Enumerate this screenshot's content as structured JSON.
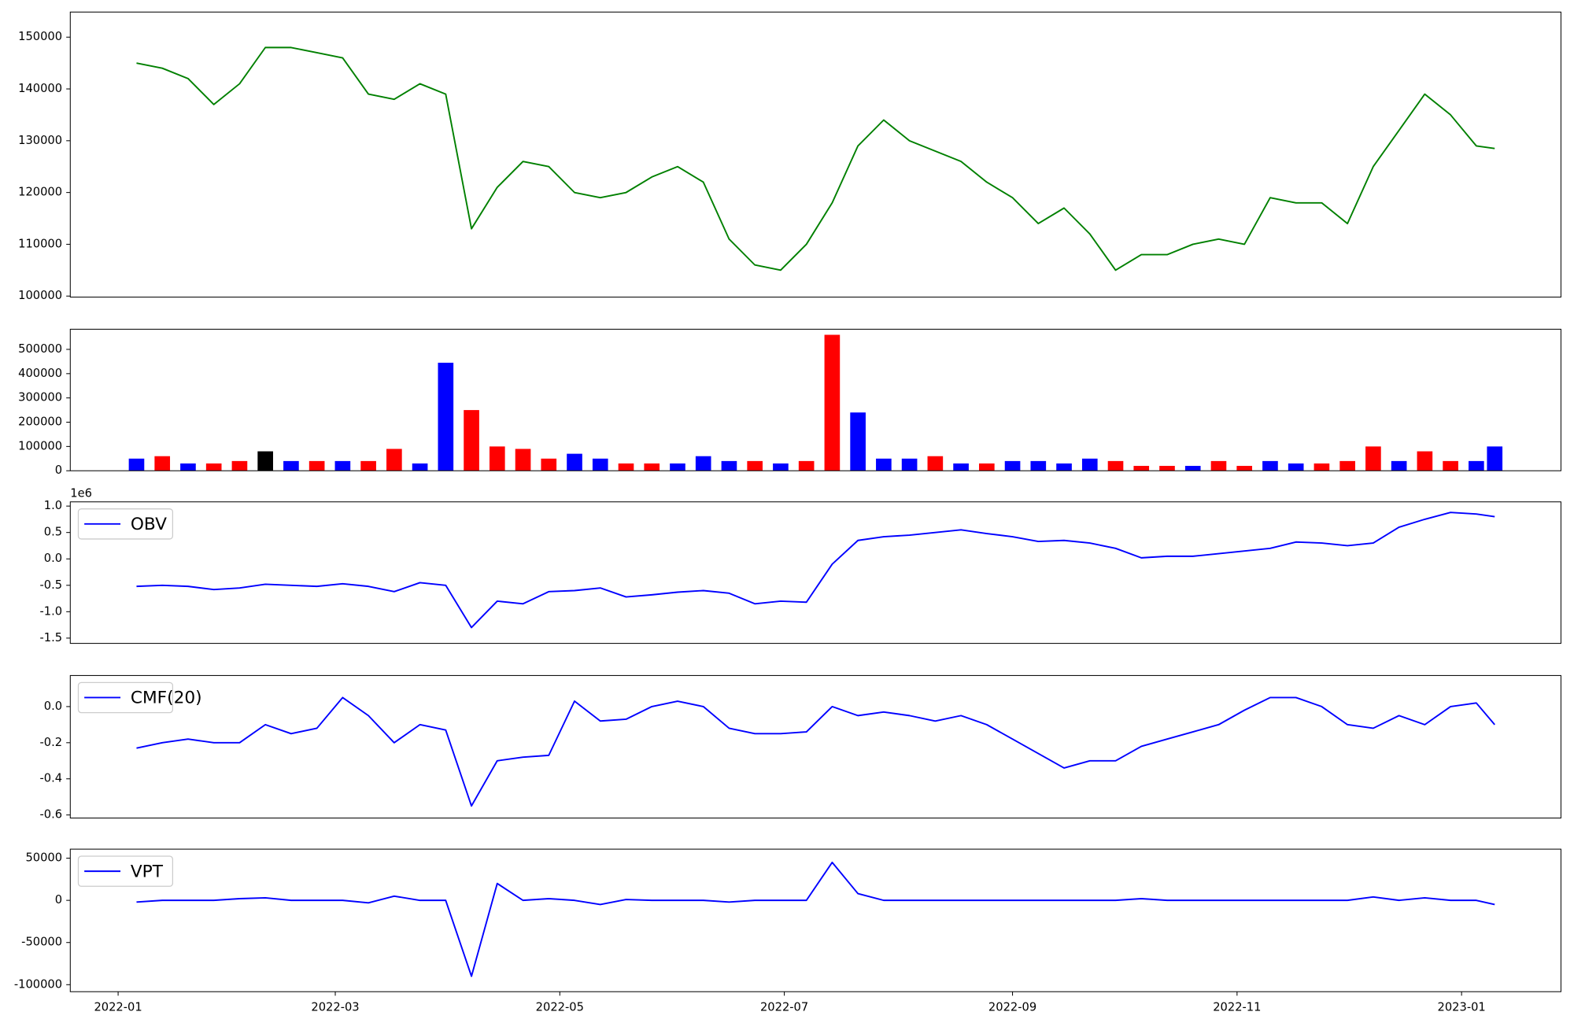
{
  "chart_data": [
    {
      "type": "line",
      "x": [
        "2022-01-06",
        "2022-01-13",
        "2022-01-20",
        "2022-01-27",
        "2022-02-03",
        "2022-02-10",
        "2022-02-17",
        "2022-02-24",
        "2022-03-03",
        "2022-03-10",
        "2022-03-17",
        "2022-03-24",
        "2022-03-31",
        "2022-04-07",
        "2022-04-14",
        "2022-04-21",
        "2022-04-28",
        "2022-05-05",
        "2022-05-12",
        "2022-05-19",
        "2022-05-26",
        "2022-06-02",
        "2022-06-09",
        "2022-06-16",
        "2022-06-23",
        "2022-06-30",
        "2022-07-07",
        "2022-07-14",
        "2022-07-21",
        "2022-07-28",
        "2022-08-04",
        "2022-08-11",
        "2022-08-18",
        "2022-08-25",
        "2022-09-01",
        "2022-09-08",
        "2022-09-15",
        "2022-09-22",
        "2022-09-29",
        "2022-10-06",
        "2022-10-13",
        "2022-10-20",
        "2022-10-27",
        "2022-11-03",
        "2022-11-10",
        "2022-11-17",
        "2022-11-24",
        "2022-12-01",
        "2022-12-08",
        "2022-12-15",
        "2022-12-22",
        "2022-12-29",
        "2023-01-05",
        "2023-01-10"
      ],
      "series": [
        {
          "color": "#008000",
          "values": [
            145000,
            144000,
            142000,
            137000,
            141000,
            148000,
            148000,
            147000,
            146000,
            139000,
            138000,
            141000,
            139000,
            113000,
            121000,
            126000,
            125000,
            120000,
            119000,
            120000,
            123000,
            125000,
            122000,
            111000,
            106000,
            105000,
            110000,
            118000,
            129000,
            134000,
            130000,
            128000,
            126000,
            122000,
            119000,
            114000,
            117000,
            112000,
            105000,
            108000,
            108000,
            110000,
            111000,
            110000,
            119000,
            118000,
            118000,
            114000,
            125000,
            132000,
            139000,
            135000,
            129000,
            128500
          ]
        }
      ],
      "xlim": [
        "2021-12-19",
        "2023-01-28"
      ],
      "ylim": [
        99800,
        154850
      ],
      "yticks": [
        100000,
        110000,
        120000,
        130000,
        140000,
        150000
      ]
    },
    {
      "type": "bar",
      "x": [
        "2022-01-06",
        "2022-01-13",
        "2022-01-20",
        "2022-01-27",
        "2022-02-03",
        "2022-02-10",
        "2022-02-17",
        "2022-02-24",
        "2022-03-03",
        "2022-03-10",
        "2022-03-17",
        "2022-03-24",
        "2022-03-31",
        "2022-04-07",
        "2022-04-14",
        "2022-04-21",
        "2022-04-28",
        "2022-05-05",
        "2022-05-12",
        "2022-05-19",
        "2022-05-26",
        "2022-06-02",
        "2022-06-09",
        "2022-06-16",
        "2022-06-23",
        "2022-06-30",
        "2022-07-07",
        "2022-07-14",
        "2022-07-21",
        "2022-07-28",
        "2022-08-04",
        "2022-08-11",
        "2022-08-18",
        "2022-08-25",
        "2022-09-01",
        "2022-09-08",
        "2022-09-15",
        "2022-09-22",
        "2022-09-29",
        "2022-10-06",
        "2022-10-13",
        "2022-10-20",
        "2022-10-27",
        "2022-11-03",
        "2022-11-10",
        "2022-11-17",
        "2022-11-24",
        "2022-12-01",
        "2022-12-08",
        "2022-12-15",
        "2022-12-22",
        "2022-12-29",
        "2023-01-05",
        "2023-01-10"
      ],
      "values": [
        50000,
        60000,
        30000,
        30000,
        40000,
        80000,
        40000,
        40000,
        40000,
        40000,
        90000,
        30000,
        445000,
        250000,
        100000,
        90000,
        50000,
        70000,
        50000,
        30000,
        30000,
        30000,
        60000,
        40000,
        40000,
        30000,
        40000,
        560000,
        240000,
        50000,
        50000,
        60000,
        30000,
        30000,
        40000,
        40000,
        30000,
        50000,
        40000,
        20000,
        20000,
        20000,
        40000,
        20000,
        40000,
        30000,
        30000,
        40000,
        100000,
        40000,
        80000,
        40000,
        40000,
        100000
      ],
      "colors": [
        "blue",
        "red",
        "blue",
        "red",
        "red",
        "black",
        "blue",
        "red",
        "blue",
        "red",
        "red",
        "blue",
        "blue",
        "red",
        "red",
        "red",
        "red",
        "blue",
        "blue",
        "red",
        "red",
        "blue",
        "blue",
        "blue",
        "red",
        "blue",
        "red",
        "red",
        "blue",
        "blue",
        "blue",
        "red",
        "blue",
        "red",
        "blue",
        "blue",
        "blue",
        "blue",
        "red",
        "red",
        "red",
        "blue",
        "red",
        "red",
        "blue",
        "blue",
        "red",
        "red",
        "red",
        "blue",
        "red",
        "red",
        "blue",
        "blue"
      ],
      "xlim": [
        "2021-12-19",
        "2023-01-28"
      ],
      "ylim": [
        0,
        583000
      ],
      "yticks": [
        0,
        100000,
        200000,
        300000,
        400000,
        500000
      ]
    },
    {
      "type": "line",
      "x": [
        "2022-01-06",
        "2022-01-13",
        "2022-01-20",
        "2022-01-27",
        "2022-02-03",
        "2022-02-10",
        "2022-02-17",
        "2022-02-24",
        "2022-03-03",
        "2022-03-10",
        "2022-03-17",
        "2022-03-24",
        "2022-03-31",
        "2022-04-07",
        "2022-04-14",
        "2022-04-21",
        "2022-04-28",
        "2022-05-05",
        "2022-05-12",
        "2022-05-19",
        "2022-05-26",
        "2022-06-02",
        "2022-06-09",
        "2022-06-16",
        "2022-06-23",
        "2022-06-30",
        "2022-07-07",
        "2022-07-14",
        "2022-07-21",
        "2022-07-28",
        "2022-08-04",
        "2022-08-11",
        "2022-08-18",
        "2022-08-25",
        "2022-09-01",
        "2022-09-08",
        "2022-09-15",
        "2022-09-22",
        "2022-09-29",
        "2022-10-06",
        "2022-10-13",
        "2022-10-20",
        "2022-10-27",
        "2022-11-03",
        "2022-11-10",
        "2022-11-17",
        "2022-11-24",
        "2022-12-01",
        "2022-12-08",
        "2022-12-15",
        "2022-12-22",
        "2022-12-29",
        "2023-01-05",
        "2023-01-10"
      ],
      "series": [
        {
          "name": "OBV",
          "color": "blue",
          "values": [
            -0.52,
            -0.5,
            -0.52,
            -0.58,
            -0.55,
            -0.48,
            -0.5,
            -0.52,
            -0.47,
            -0.52,
            -0.62,
            -0.45,
            -0.5,
            -1.3,
            -0.8,
            -0.85,
            -0.62,
            -0.6,
            -0.55,
            -0.72,
            -0.68,
            -0.63,
            -0.6,
            -0.65,
            -0.85,
            -0.8,
            -0.82,
            -0.1,
            0.35,
            0.42,
            0.45,
            0.5,
            0.55,
            0.48,
            0.42,
            0.33,
            0.35,
            0.3,
            0.2,
            0.02,
            0.05,
            0.05,
            0.1,
            0.15,
            0.2,
            0.32,
            0.3,
            0.25,
            0.3,
            0.6,
            0.75,
            0.88,
            0.85,
            0.8
          ]
        }
      ],
      "y_offset_text": "1e6",
      "legend": "upper left",
      "xlim": [
        "2021-12-19",
        "2023-01-28"
      ],
      "ylim": [
        -1.6,
        1.08
      ],
      "yticks": [
        -1.5,
        {
          "value": -1,
          "label": "-1.0"
        },
        -0.5,
        {
          "value": 0,
          "label": "0.0"
        },
        0.5,
        {
          "value": 1,
          "label": "1.0"
        }
      ]
    },
    {
      "type": "line",
      "x": [
        "2022-01-06",
        "2022-01-13",
        "2022-01-20",
        "2022-01-27",
        "2022-02-03",
        "2022-02-10",
        "2022-02-17",
        "2022-02-24",
        "2022-03-03",
        "2022-03-10",
        "2022-03-17",
        "2022-03-24",
        "2022-03-31",
        "2022-04-07",
        "2022-04-14",
        "2022-04-21",
        "2022-04-28",
        "2022-05-05",
        "2022-05-12",
        "2022-05-19",
        "2022-05-26",
        "2022-06-02",
        "2022-06-09",
        "2022-06-16",
        "2022-06-23",
        "2022-06-30",
        "2022-07-07",
        "2022-07-14",
        "2022-07-21",
        "2022-07-28",
        "2022-08-04",
        "2022-08-11",
        "2022-08-18",
        "2022-08-25",
        "2022-09-01",
        "2022-09-08",
        "2022-09-15",
        "2022-09-22",
        "2022-09-29",
        "2022-10-06",
        "2022-10-13",
        "2022-10-20",
        "2022-10-27",
        "2022-11-03",
        "2022-11-10",
        "2022-11-17",
        "2022-11-24",
        "2022-12-01",
        "2022-12-08",
        "2022-12-15",
        "2022-12-22",
        "2022-12-29",
        "2023-01-05",
        "2023-01-10"
      ],
      "series": [
        {
          "name": "CMF(20)",
          "color": "blue",
          "values": [
            -0.23,
            -0.2,
            -0.18,
            -0.2,
            -0.2,
            -0.1,
            -0.15,
            -0.12,
            0.05,
            -0.05,
            -0.2,
            -0.1,
            -0.13,
            -0.55,
            -0.3,
            -0.28,
            -0.27,
            0.03,
            -0.08,
            -0.07,
            0.0,
            0.03,
            0.0,
            -0.12,
            -0.15,
            -0.15,
            -0.14,
            0.0,
            -0.05,
            -0.03,
            -0.05,
            -0.08,
            -0.05,
            -0.1,
            -0.18,
            -0.26,
            -0.34,
            -0.3,
            -0.3,
            -0.22,
            -0.18,
            -0.14,
            -0.1,
            -0.02,
            0.05,
            0.05,
            0.0,
            -0.1,
            -0.12,
            -0.05,
            -0.1,
            0.0,
            0.02,
            -0.1
          ]
        }
      ],
      "legend": "upper left",
      "xlim": [
        "2021-12-19",
        "2023-01-28"
      ],
      "ylim": [
        -0.617,
        0.172
      ],
      "yticks": [
        -0.6,
        -0.4,
        -0.2,
        {
          "value": 0,
          "label": "0.0"
        }
      ]
    },
    {
      "type": "line",
      "x": [
        "2022-01-06",
        "2022-01-13",
        "2022-01-20",
        "2022-01-27",
        "2022-02-03",
        "2022-02-10",
        "2022-02-17",
        "2022-02-24",
        "2022-03-03",
        "2022-03-10",
        "2022-03-17",
        "2022-03-24",
        "2022-03-31",
        "2022-04-07",
        "2022-04-14",
        "2022-04-21",
        "2022-04-28",
        "2022-05-05",
        "2022-05-12",
        "2022-05-19",
        "2022-05-26",
        "2022-06-02",
        "2022-06-09",
        "2022-06-16",
        "2022-06-23",
        "2022-06-30",
        "2022-07-07",
        "2022-07-14",
        "2022-07-21",
        "2022-07-28",
        "2022-08-04",
        "2022-08-11",
        "2022-08-18",
        "2022-08-25",
        "2022-09-01",
        "2022-09-08",
        "2022-09-15",
        "2022-09-22",
        "2022-09-29",
        "2022-10-06",
        "2022-10-13",
        "2022-10-20",
        "2022-10-27",
        "2022-11-03",
        "2022-11-10",
        "2022-11-17",
        "2022-11-24",
        "2022-12-01",
        "2022-12-08",
        "2022-12-15",
        "2022-12-22",
        "2022-12-29",
        "2023-01-05",
        "2023-01-10"
      ],
      "series": [
        {
          "name": "VPT",
          "color": "blue",
          "values": [
            -2000,
            0,
            0,
            0,
            2000,
            3000,
            0,
            0,
            0,
            -3000,
            5000,
            0,
            0,
            -90000,
            20000,
            0,
            2000,
            0,
            -5000,
            1000,
            0,
            0,
            0,
            -2000,
            0,
            0,
            0,
            45000,
            8000,
            0,
            0,
            0,
            0,
            0,
            0,
            0,
            0,
            0,
            0,
            2000,
            0,
            0,
            0,
            0,
            0,
            0,
            0,
            0,
            4000,
            0,
            3000,
            0,
            0,
            -5000
          ]
        }
      ],
      "legend": "upper left",
      "xlim": [
        "2021-12-19",
        "2023-01-28"
      ],
      "ylim": [
        -108300,
        60700
      ],
      "yticks": [
        -100000,
        -50000,
        0,
        50000
      ],
      "xticks": [
        {
          "value": "2022-01-01",
          "label": "2022-01"
        },
        {
          "value": "2022-03-01",
          "label": "2022-03"
        },
        {
          "value": "2022-05-01",
          "label": "2022-05"
        },
        {
          "value": "2022-07-01",
          "label": "2022-07"
        },
        {
          "value": "2022-09-01",
          "label": "2022-09"
        },
        {
          "value": "2022-11-01",
          "label": "2022-11"
        },
        {
          "value": "2023-01-01",
          "label": "2023-01"
        }
      ]
    }
  ]
}
